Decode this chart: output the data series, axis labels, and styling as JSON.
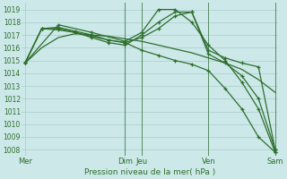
{
  "background_color": "#cce8e8",
  "plot_bg_color": "#cce8e8",
  "grid_color": "#aacccc",
  "line_color": "#2d6e2d",
  "title": "Pression niveau de la mer( hPa )",
  "yticks": [
    1008,
    1009,
    1010,
    1011,
    1012,
    1013,
    1014,
    1015,
    1016,
    1017,
    1018,
    1019
  ],
  "ylim": [
    1007.5,
    1019.5
  ],
  "xtick_labels": [
    "Mer",
    "Dim",
    "Jeu",
    "Ven",
    "Sam"
  ],
  "xtick_positions": [
    0,
    6,
    7,
    11,
    15
  ],
  "vlines": [
    6,
    7,
    11,
    15
  ],
  "x_total": 15,
  "series1_x": [
    0,
    1,
    2,
    3,
    4,
    5,
    6,
    7,
    8,
    9,
    10,
    11,
    12,
    13,
    14,
    15
  ],
  "series1": [
    1014.8,
    1016.0,
    1016.8,
    1017.1,
    1017.0,
    1016.9,
    1016.7,
    1016.5,
    1016.2,
    1015.9,
    1015.6,
    1015.2,
    1014.8,
    1014.3,
    1013.5,
    1012.5
  ],
  "series2_x": [
    0,
    1,
    2,
    3,
    4,
    5,
    6,
    7,
    8,
    9,
    10,
    11,
    12,
    13,
    14,
    15
  ],
  "series2": [
    1014.8,
    1017.5,
    1017.4,
    1017.2,
    1016.9,
    1016.6,
    1016.4,
    1016.8,
    1017.5,
    1018.5,
    1018.8,
    1015.8,
    1015.2,
    1014.8,
    1014.5,
    1008.0
  ],
  "series3_x": [
    0,
    1,
    2,
    3,
    4,
    5,
    6,
    7,
    8,
    9,
    10,
    11,
    12,
    13,
    14,
    15
  ],
  "series3": [
    1014.8,
    1017.5,
    1017.5,
    1017.2,
    1016.8,
    1016.4,
    1016.2,
    1017.0,
    1018.0,
    1018.8,
    1018.8,
    1015.5,
    1014.8,
    1013.8,
    1012.0,
    1008.0
  ],
  "series4_x": [
    0,
    2,
    4,
    6,
    7,
    8,
    9,
    10,
    11,
    12,
    13,
    14,
    15
  ],
  "series4": [
    1014.8,
    1017.8,
    1017.2,
    1016.5,
    1017.2,
    1019.0,
    1019.0,
    1018.0,
    1016.2,
    1015.0,
    1013.3,
    1011.2,
    1007.8
  ],
  "series5_x": [
    0,
    1,
    2,
    3,
    4,
    5,
    6,
    7,
    8,
    9,
    10,
    11,
    12,
    13,
    14,
    15
  ],
  "series5": [
    1014.8,
    1017.5,
    1017.6,
    1017.3,
    1017.0,
    1016.6,
    1016.4,
    1015.8,
    1015.4,
    1015.0,
    1014.7,
    1014.2,
    1012.8,
    1011.2,
    1009.0,
    1007.8
  ]
}
